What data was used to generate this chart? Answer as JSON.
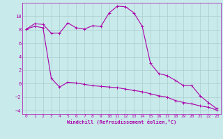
{
  "background_color": "#c8eaea",
  "line_color": "#aa00aa",
  "grid_color": "#aacccc",
  "xlabel": "Windchill (Refroidissement éolien,°C)",
  "xlim": [
    -0.5,
    23.5
  ],
  "ylim": [
    -4.5,
    12
  ],
  "xticks": [
    0,
    1,
    2,
    3,
    4,
    5,
    6,
    7,
    8,
    9,
    10,
    11,
    12,
    13,
    14,
    15,
    16,
    17,
    18,
    19,
    20,
    21,
    22,
    23
  ],
  "yticks": [
    -4,
    -2,
    0,
    2,
    4,
    6,
    8,
    10
  ],
  "line1_x": [
    0,
    1,
    2,
    3,
    4,
    5,
    6,
    7,
    8,
    9,
    10,
    11,
    12,
    13,
    14,
    15,
    16,
    17,
    18,
    19,
    20,
    21,
    22,
    23
  ],
  "line1_y": [
    8.1,
    8.9,
    8.8,
    7.5,
    7.5,
    9.0,
    8.3,
    8.1,
    8.6,
    8.5,
    10.5,
    11.5,
    11.4,
    10.5,
    8.5,
    3.0,
    1.5,
    1.2,
    0.5,
    -0.3,
    -0.3,
    -1.8,
    -2.8,
    -3.7
  ],
  "line2_x": [
    0,
    1,
    2,
    3,
    4,
    5,
    6,
    7,
    8,
    9,
    10,
    11,
    12,
    13,
    14,
    15,
    16,
    17,
    18,
    19,
    20,
    21,
    22,
    23
  ],
  "line2_y": [
    8.1,
    8.5,
    8.3,
    0.8,
    -0.5,
    0.2,
    0.1,
    -0.1,
    -0.3,
    -0.4,
    -0.5,
    -0.6,
    -0.8,
    -1.0,
    -1.2,
    -1.5,
    -1.8,
    -2.0,
    -2.5,
    -2.8,
    -3.0,
    -3.3,
    -3.5,
    -3.9
  ]
}
